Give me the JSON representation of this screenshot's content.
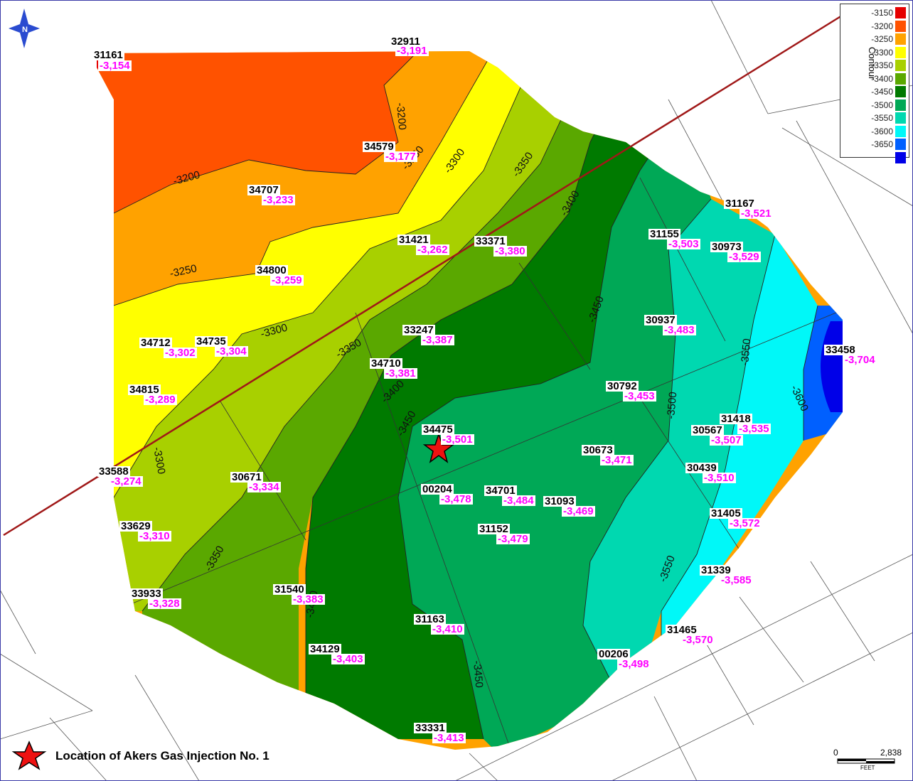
{
  "legend": {
    "title": "Contour",
    "entries": [
      {
        "label": "-3150",
        "color": "#e60000"
      },
      {
        "label": "-3200",
        "color": "#ff5200"
      },
      {
        "label": "-3250",
        "color": "#ffa200"
      },
      {
        "label": "-3300",
        "color": "#ffff00"
      },
      {
        "label": "-3350",
        "color": "#a8d000"
      },
      {
        "label": "-3400",
        "color": "#5aa800"
      },
      {
        "label": "-3450",
        "color": "#007a00"
      },
      {
        "label": "-3500",
        "color": "#00a856"
      },
      {
        "label": "-3550",
        "color": "#00d8b0"
      },
      {
        "label": "-3600",
        "color": "#00f8f8"
      },
      {
        "label": "-3650",
        "color": "#0060ff"
      }
    ],
    "last_color": "#0000e8"
  },
  "compass": {
    "icon": "north-arrow-icon",
    "label": "N"
  },
  "injection_location": {
    "label": "Location of Akers Gas Injection No. 1",
    "icon": "red-star-icon",
    "color": "#ee1111"
  },
  "scale_bar": {
    "start": "0",
    "end": "2,838",
    "unit": "FEET"
  },
  "contour_labels": [
    "-3200",
    "-3250",
    "-3300",
    "-3350",
    "-3400",
    "-3450",
    "-3500",
    "-3550",
    "-3600"
  ],
  "wells": [
    {
      "id": "31161",
      "depth": "-3,154"
    },
    {
      "id": "32911",
      "depth": "-3,191"
    },
    {
      "id": "34579",
      "depth": "-3,177"
    },
    {
      "id": "34707",
      "depth": "-3,233"
    },
    {
      "id": "34800",
      "depth": "-3,259"
    },
    {
      "id": "31421",
      "depth": "-3,262"
    },
    {
      "id": "33371",
      "depth": "-3,380"
    },
    {
      "id": "31167",
      "depth": "-3,521"
    },
    {
      "id": "31155",
      "depth": "-3,503"
    },
    {
      "id": "30973",
      "depth": "-3,529"
    },
    {
      "id": "34712",
      "depth": "-3,302"
    },
    {
      "id": "34735",
      "depth": "-3,304"
    },
    {
      "id": "33247",
      "depth": "-3,387"
    },
    {
      "id": "30937",
      "depth": "-3,483"
    },
    {
      "id": "34710",
      "depth": "-3,381"
    },
    {
      "id": "33458",
      "depth": "-3,704"
    },
    {
      "id": "34815",
      "depth": "-3,289"
    },
    {
      "id": "30792",
      "depth": "-3,453"
    },
    {
      "id": "34475",
      "depth": "-3,501"
    },
    {
      "id": "31418",
      "depth": "-3,535"
    },
    {
      "id": "30567",
      "depth": "-3,507"
    },
    {
      "id": "30673",
      "depth": "-3,471"
    },
    {
      "id": "33588",
      "depth": "-3,274"
    },
    {
      "id": "30671",
      "depth": "-3,334"
    },
    {
      "id": "30439",
      "depth": "-3,510"
    },
    {
      "id": "00204",
      "depth": "-3,478"
    },
    {
      "id": "34701",
      "depth": "-3,484"
    },
    {
      "id": "31093",
      "depth": "-3,469"
    },
    {
      "id": "33629",
      "depth": "-3,310"
    },
    {
      "id": "31152",
      "depth": "-3,479"
    },
    {
      "id": "31405",
      "depth": "-3,572"
    },
    {
      "id": "31339",
      "depth": "-3,585"
    },
    {
      "id": "33933",
      "depth": "-3,328"
    },
    {
      "id": "31540",
      "depth": "-3,383"
    },
    {
      "id": "31163",
      "depth": "-3,410"
    },
    {
      "id": "31465",
      "depth": "-3,570"
    },
    {
      "id": "34129",
      "depth": "-3,403"
    },
    {
      "id": "00206",
      "depth": "-3,498"
    },
    {
      "id": "33331",
      "depth": "-3,413"
    }
  ]
}
